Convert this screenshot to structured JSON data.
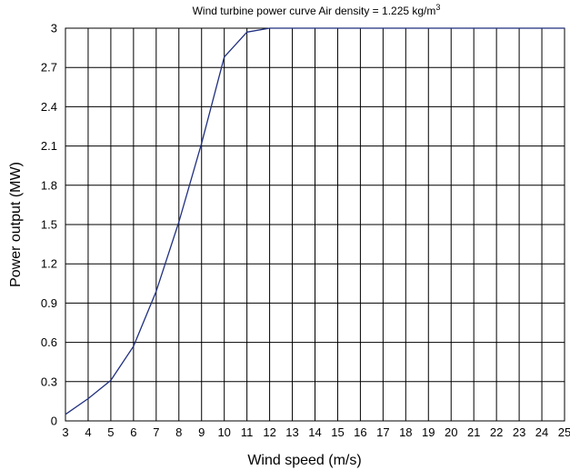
{
  "chart_data": {
    "type": "line",
    "title": "Wind turbine power curve   Air density = 1.225 kg/m",
    "title_superscript": "3",
    "xlabel": "Wind speed (m/s)",
    "ylabel": "Power output (MW)",
    "xlim": [
      3,
      25
    ],
    "ylim": [
      0,
      3
    ],
    "xticks": [
      "3",
      "4",
      "5",
      "6",
      "7",
      "8",
      "9",
      "10",
      "11",
      "12",
      "13",
      "14",
      "15",
      "16",
      "17",
      "18",
      "19",
      "20",
      "21",
      "22",
      "23",
      "24",
      "25"
    ],
    "yticks": [
      "0",
      "0.3",
      "0.6",
      "0.9",
      "1.2",
      "1.5",
      "1.8",
      "2.1",
      "2.4",
      "2.7",
      "3"
    ],
    "grid": true,
    "line_color": "#1f2f7f",
    "series": [
      {
        "x": [
          3,
          4,
          5,
          6,
          7,
          8,
          9,
          10,
          11,
          12,
          13,
          14,
          15,
          16,
          17,
          18,
          19,
          20,
          21,
          22,
          23,
          24,
          25
        ],
        "y": [
          0.05,
          0.17,
          0.31,
          0.57,
          0.99,
          1.52,
          2.12,
          2.78,
          2.97,
          3.0,
          3.0,
          3.0,
          3.0,
          3.0,
          3.0,
          3.0,
          3.0,
          3.0,
          3.0,
          3.0,
          3.0,
          3.0,
          3.0
        ]
      }
    ]
  }
}
